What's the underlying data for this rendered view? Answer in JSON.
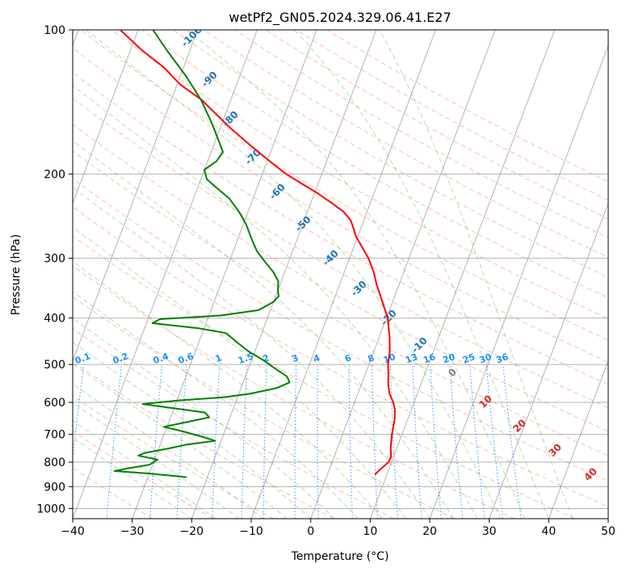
{
  "chart_data": {
    "type": "line",
    "subtype": "skew-T log-P diagram",
    "title": "wetPf2_GN05.2024.329.06.41.E27",
    "xlabel": "Temperature (°C)",
    "ylabel": "Pressure (hPa)",
    "xlim": [
      -40,
      50
    ],
    "ylim": [
      1050,
      100
    ],
    "y_scale": "log",
    "x_ticks": [
      "−40",
      "−30",
      "−20",
      "−10",
      "0",
      "10",
      "20",
      "30",
      "40",
      "50"
    ],
    "y_ticks": [
      "100",
      "200",
      "300",
      "400",
      "500",
      "600",
      "700",
      "800",
      "900",
      "1000"
    ],
    "grid": true,
    "colors": {
      "temperature": "#ff0000",
      "dewpoint": "#008000",
      "dry_adiabat": "#ff7f50",
      "moist_adiabat": "#2ca02c",
      "isotherm": "#808080",
      "mixing_ratio": "#1e90ff",
      "dry_adiabat_label": "#d62728",
      "moist_adiabat_label": "#1f77b4",
      "zero_label": "#808080"
    },
    "series": [
      {
        "role": "temperature",
        "points": [
          [
            850,
            8.0
          ],
          [
            830,
            8.5
          ],
          [
            800,
            9.5
          ],
          [
            780,
            9.6
          ],
          [
            750,
            9.0
          ],
          [
            700,
            8.3
          ],
          [
            650,
            7.8
          ],
          [
            620,
            7.2
          ],
          [
            600,
            6.5
          ],
          [
            575,
            5.3
          ],
          [
            550,
            4.5
          ],
          [
            520,
            3.8
          ],
          [
            500,
            3.2
          ],
          [
            470,
            2.7
          ],
          [
            440,
            1.8
          ],
          [
            400,
            0.2
          ],
          [
            370,
            -1.7
          ],
          [
            340,
            -3.8
          ],
          [
            320,
            -5.1
          ],
          [
            300,
            -6.8
          ],
          [
            285,
            -8.5
          ],
          [
            270,
            -10.3
          ],
          [
            260,
            -11.2
          ],
          [
            250,
            -12.2
          ],
          [
            240,
            -13.9
          ],
          [
            230,
            -16.5
          ],
          [
            220,
            -19.3
          ],
          [
            210,
            -22.6
          ],
          [
            200,
            -26.0
          ],
          [
            190,
            -29.0
          ],
          [
            175,
            -33.6
          ],
          [
            160,
            -38.4
          ],
          [
            140,
            -44.9
          ],
          [
            130,
            -49.5
          ],
          [
            120,
            -53.2
          ],
          [
            110,
            -58.2
          ],
          [
            100,
            -63.0
          ]
        ]
      },
      {
        "role": "dewpoint",
        "points": [
          [
            860,
            -23.5
          ],
          [
            845,
            -30.0
          ],
          [
            835,
            -36.0
          ],
          [
            825,
            -34.0
          ],
          [
            810,
            -30.5
          ],
          [
            790,
            -29.5
          ],
          [
            775,
            -33.0
          ],
          [
            765,
            -32.0
          ],
          [
            750,
            -28.5
          ],
          [
            735,
            -25.5
          ],
          [
            722,
            -21.0
          ],
          [
            705,
            -24.0
          ],
          [
            690,
            -27.0
          ],
          [
            675,
            -30.5
          ],
          [
            660,
            -27.0
          ],
          [
            645,
            -23.5
          ],
          [
            630,
            -24.5
          ],
          [
            615,
            -31.0
          ],
          [
            605,
            -35.5
          ],
          [
            595,
            -30.0
          ],
          [
            585,
            -22.0
          ],
          [
            575,
            -18.0
          ],
          [
            560,
            -14.0
          ],
          [
            545,
            -12.2
          ],
          [
            530,
            -13.0
          ],
          [
            510,
            -15.5
          ],
          [
            490,
            -18.0
          ],
          [
            470,
            -21.0
          ],
          [
            450,
            -23.5
          ],
          [
            430,
            -26.0
          ],
          [
            420,
            -31.0
          ],
          [
            410,
            -39.0
          ],
          [
            402,
            -38.0
          ],
          [
            395,
            -28.0
          ],
          [
            385,
            -22.0
          ],
          [
            370,
            -20.0
          ],
          [
            360,
            -19.5
          ],
          [
            350,
            -20.0
          ],
          [
            335,
            -20.5
          ],
          [
            320,
            -22.0
          ],
          [
            305,
            -24.0
          ],
          [
            290,
            -26.0
          ],
          [
            280,
            -27.0
          ],
          [
            270,
            -28.0
          ],
          [
            255,
            -29.5
          ],
          [
            240,
            -31.5
          ],
          [
            225,
            -34.0
          ],
          [
            213,
            -37.0
          ],
          [
            205,
            -39.0
          ],
          [
            196,
            -40.0
          ],
          [
            188,
            -38.5
          ],
          [
            180,
            -38.0
          ],
          [
            170,
            -39.5
          ],
          [
            155,
            -42.0
          ],
          [
            140,
            -45.0
          ],
          [
            125,
            -49.0
          ],
          [
            110,
            -54.0
          ],
          [
            100,
            -57.5
          ]
        ]
      }
    ],
    "moist_adiabat_labels": [
      "-100",
      "-90",
      "-80",
      "-70",
      "-60",
      "-50",
      "-40",
      "-30",
      "-20",
      "-10",
      "0"
    ],
    "dry_adiabat_labels": [
      "10",
      "20",
      "30",
      "40"
    ],
    "mixing_ratio_labels": [
      "0.1",
      "0.2",
      "0.4",
      "0.6",
      "1",
      "1.5",
      "2",
      "3",
      "4",
      "6",
      "8",
      "10",
      "13",
      "16",
      "20",
      "25",
      "30",
      "36"
    ]
  }
}
